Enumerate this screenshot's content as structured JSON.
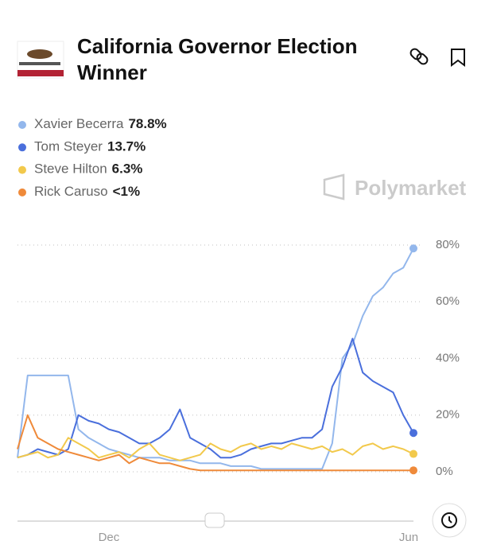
{
  "chart_data": {
    "type": "line",
    "title": "California Governor Election Winner",
    "watermark": "Polymarket",
    "categories": [
      null,
      null,
      null,
      null,
      null,
      null,
      null,
      null,
      null,
      "Dec",
      null,
      null,
      null,
      null,
      null,
      null,
      null,
      null,
      null,
      null,
      null,
      null,
      null,
      null,
      null,
      null,
      null,
      null,
      null,
      null,
      null,
      null,
      null,
      null,
      null,
      null,
      null,
      null,
      null,
      "Jun"
    ],
    "series": [
      {
        "name": "Xavier Becerra",
        "color": "#93b7ec",
        "values": [
          5,
          34,
          34,
          34,
          34,
          34,
          15,
          12,
          10,
          8,
          7,
          6,
          5,
          5,
          5,
          4,
          4,
          4,
          3,
          3,
          3,
          2,
          2,
          2,
          1,
          1,
          1,
          1,
          1,
          1,
          1,
          10,
          40,
          45,
          55,
          62,
          65,
          70,
          72,
          78.8
        ]
      },
      {
        "name": "Tom Steyer",
        "color": "#4a6fdc",
        "values": [
          5,
          6,
          8,
          7,
          6,
          8,
          20,
          18,
          17,
          15,
          14,
          12,
          10,
          10,
          12,
          15,
          22,
          12,
          10,
          8,
          5,
          5,
          6,
          8,
          9,
          10,
          10,
          11,
          12,
          12,
          15,
          30,
          37,
          47,
          35,
          32,
          30,
          28,
          20,
          13.7
        ]
      },
      {
        "name": "Steve Hilton",
        "color": "#f2c94c",
        "values": [
          5,
          6,
          7,
          5,
          6,
          12,
          10,
          8,
          5,
          6,
          7,
          5,
          8,
          10,
          6,
          5,
          4,
          5,
          6,
          10,
          8,
          7,
          9,
          10,
          8,
          9,
          8,
          10,
          9,
          8,
          9,
          7,
          8,
          6,
          9,
          10,
          8,
          9,
          8,
          6.3
        ]
      },
      {
        "name": "Rick Caruso",
        "color": "#ef8a3a",
        "values": [
          8,
          20,
          12,
          10,
          8,
          7,
          6,
          5,
          4,
          5,
          6,
          3,
          5,
          4,
          3,
          3,
          2,
          1,
          0.5,
          0.5,
          0.5,
          0.5,
          0.5,
          0.5,
          0.5,
          0.5,
          0.5,
          0.5,
          0.5,
          0.5,
          0.5,
          0.5,
          0.5,
          0.5,
          0.5,
          0.5,
          0.5,
          0.5,
          0.5,
          0.5
        ]
      }
    ],
    "legend_values": [
      "78.8%",
      "13.7%",
      "6.3%",
      "<1%"
    ],
    "ylim": [
      -2,
      82
    ],
    "yticks": [
      {
        "value": 0,
        "label": "0%"
      },
      {
        "value": 20,
        "label": "20%"
      },
      {
        "value": 40,
        "label": "40%"
      },
      {
        "value": 60,
        "label": "60%"
      },
      {
        "value": 80,
        "label": "80%"
      }
    ],
    "grid": true
  }
}
